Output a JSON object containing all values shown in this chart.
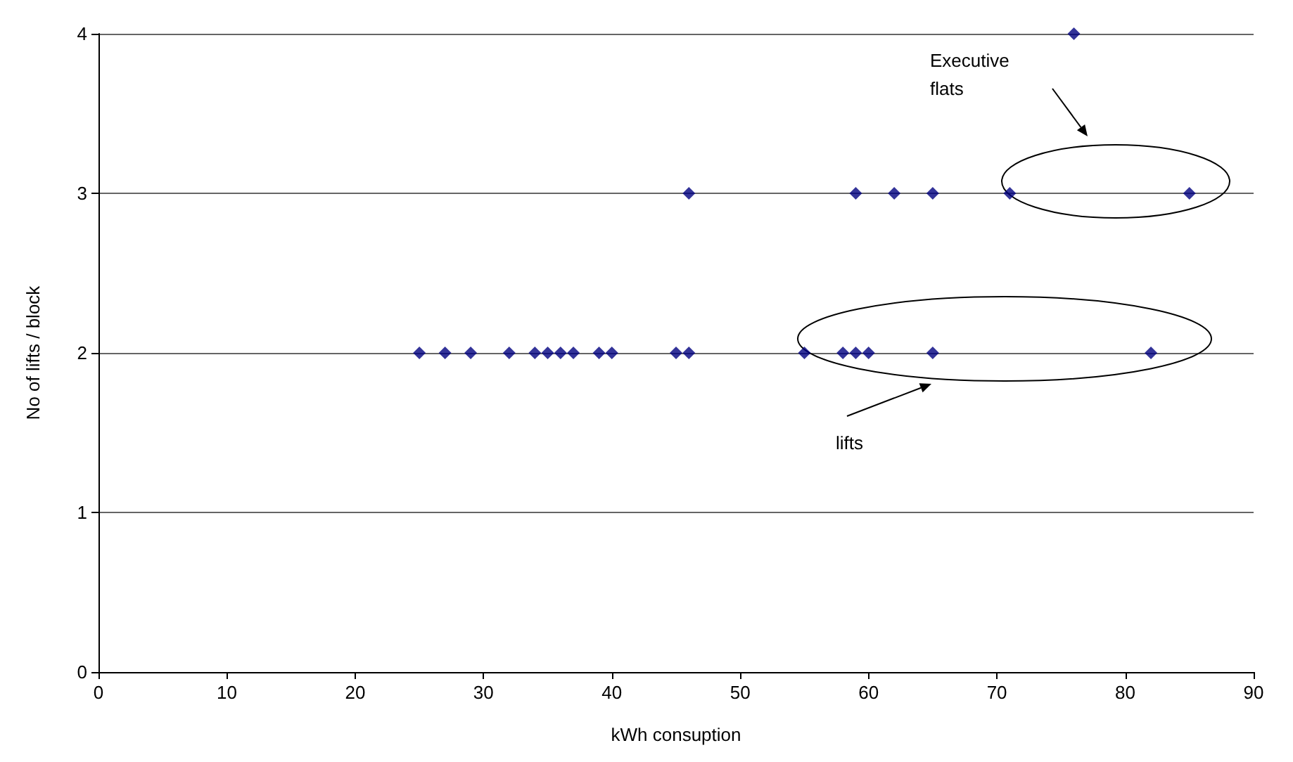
{
  "chart_data": {
    "type": "scatter",
    "xlabel": "kWh consuption",
    "ylabel": "No of lifts / block",
    "series": [
      {
        "color": "#000080",
        "x": [
          25,
          27,
          29,
          32,
          34,
          35,
          36,
          37,
          39,
          40,
          45,
          46,
          55,
          58,
          59,
          60,
          65,
          82,
          46,
          59,
          62,
          65,
          71,
          85,
          76
        ],
        "values": [
          2,
          2,
          2,
          2,
          2,
          2,
          2,
          2,
          2,
          2,
          2,
          2,
          2,
          2,
          2,
          2,
          2,
          2,
          3,
          3,
          3,
          3,
          3,
          3,
          4
        ]
      }
    ],
    "xlim": [
      0,
      90
    ],
    "xticks": [
      0,
      10,
      20,
      30,
      40,
      50,
      60,
      70,
      80,
      90
    ],
    "ylim": [
      0,
      4
    ],
    "yticks": [
      0,
      1,
      2,
      3,
      4
    ],
    "grid": "y",
    "marker": "diamond",
    "annotations": [
      "Executive flats",
      "lifts"
    ]
  }
}
